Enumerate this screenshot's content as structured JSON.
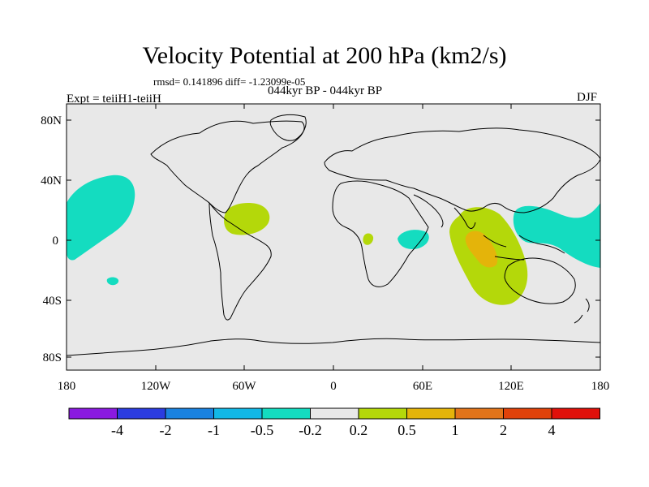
{
  "title": "Velocity Potential at 200 hPa (km2/s)",
  "stats": "rmsd= 0.141896 diff= -1.23099e-05",
  "period": "044kyr BP - 044kyr BP",
  "experiment": "Expt = teiiH1-teiiH",
  "season": "DJF",
  "map": {
    "lat_ticks": [
      "80N",
      "40N",
      "0",
      "40S",
      "80S"
    ],
    "lon_ticks": [
      "180",
      "120W",
      "60W",
      "0",
      "60E",
      "120E",
      "180"
    ],
    "background_color": "#e8e8e8",
    "coast_color": "#000000"
  },
  "colorbar": {
    "labels": [
      "-4",
      "-2",
      "-1",
      "-0.5",
      "-0.2",
      "0.2",
      "0.5",
      "1",
      "2",
      "4"
    ],
    "colors": [
      "#8a1ae0",
      "#2b3ce0",
      "#1a82e0",
      "#12b8e6",
      "#14dcc0",
      "#e8e8e8",
      "#b4d80a",
      "#e4b40a",
      "#e2741a",
      "#e0420a",
      "#e0100a"
    ]
  }
}
